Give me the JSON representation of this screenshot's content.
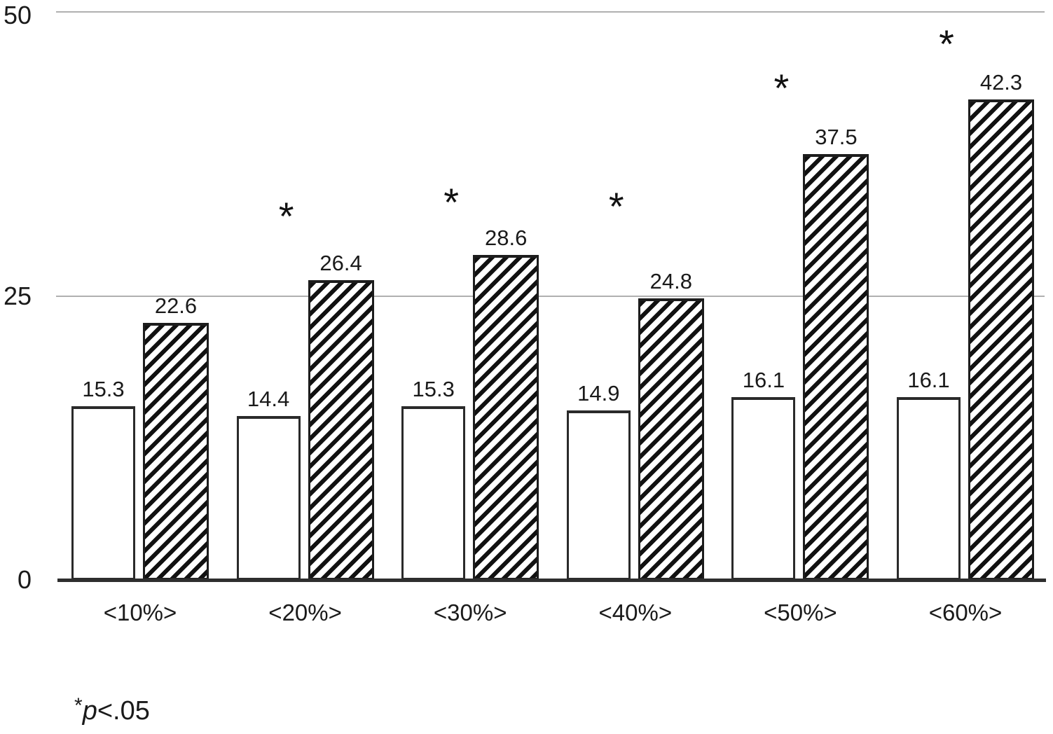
{
  "chart_data": {
    "type": "bar",
    "title": "",
    "xlabel": "",
    "ylabel": "",
    "categories": [
      "<10%>",
      "<20%>",
      "<30%>",
      "<40%>",
      "<50%>",
      "<60%>"
    ],
    "series": [
      {
        "name": "solid-white-bars",
        "pattern": "plain-white",
        "values": [
          15.3,
          14.4,
          15.3,
          14.9,
          16.1,
          16.1
        ]
      },
      {
        "name": "hatched-bars",
        "pattern": "diagonal-hatch",
        "values": [
          22.6,
          26.4,
          28.6,
          24.8,
          37.5,
          42.3
        ]
      }
    ],
    "value_labels_shown": true,
    "y_ticks": [
      "0",
      "25",
      "50"
    ],
    "ylim": [
      0,
      50
    ],
    "grid": "horizontal-gridlines-at-25-and-50",
    "legend_position": "none",
    "significance": {
      "symbol": "*",
      "significant_categories": [
        "<20%>",
        "<30%>",
        "<40%>",
        "<50%>",
        "<60%>"
      ]
    },
    "footnote": {
      "marker": "*",
      "p_symbol": "p",
      "threshold": "<.05"
    },
    "colors": {
      "background": "#ffffff",
      "text": "#1a1a1a",
      "bar_fill": "#ffffff",
      "bar_border": "#262626",
      "hatch_stroke": "#111111",
      "gridline": "#b0b0b0",
      "axis_line": "#2e2e2e"
    }
  }
}
